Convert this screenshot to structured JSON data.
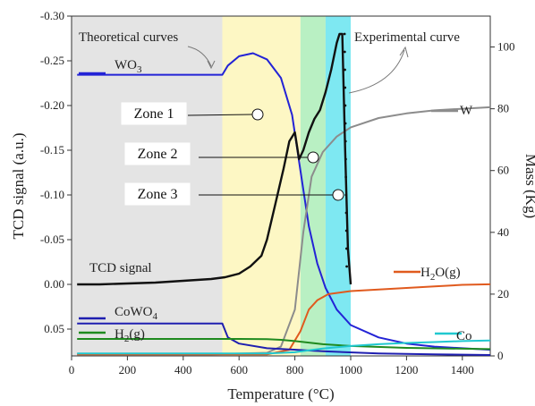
{
  "chart_data": {
    "type": "line",
    "xlabel": "Temperature (°C)",
    "ylabel_left": "TCD signal (a.u.)",
    "ylabel_right": "Mass (Kg)",
    "xlim": [
      0,
      1500
    ],
    "ylim_left": [
      0.08,
      -0.3
    ],
    "ylim_right": [
      0,
      110
    ],
    "x_ticks": [
      0,
      200,
      400,
      600,
      800,
      1000,
      1200,
      1400
    ],
    "y_left_ticks": [
      -0.3,
      -0.25,
      -0.2,
      -0.15,
      -0.1,
      -0.05,
      0.0,
      0.05
    ],
    "y_left_tick_labels": [
      "-0.30",
      "-0.25",
      "-0.20",
      "-0.15",
      "-0.10",
      "-0.05",
      "0.00",
      "0.05"
    ],
    "y_right_ticks": [
      0,
      20,
      40,
      60,
      80,
      100
    ],
    "zones": [
      {
        "name": "Zone 1",
        "x_range": [
          540,
          820
        ],
        "color": "#fdf7c4"
      },
      {
        "name": "Zone 2",
        "x_range": [
          820,
          910
        ],
        "color": "#b9f0c3"
      },
      {
        "name": "Zone 3",
        "x_range": [
          910,
          1000
        ],
        "color": "#7ee8f2"
      }
    ],
    "background_region": {
      "x_range": [
        0,
        540
      ],
      "color": "#e4e4e4"
    },
    "series": [
      {
        "name": "WO3",
        "axis": "right",
        "color": "#2323d6",
        "x": [
          20,
          540,
          560,
          600,
          650,
          700,
          750,
          790,
          820,
          850,
          880,
          910,
          950,
          1000,
          1100,
          1200,
          1300,
          1400,
          1500
        ],
        "y": [
          91,
          91,
          94,
          97,
          98,
          96,
          90,
          78,
          60,
          42,
          30,
          22,
          15,
          10,
          6,
          4,
          3,
          2.5,
          2
        ]
      },
      {
        "name": "W",
        "axis": "right",
        "color": "#8c8c8c",
        "x": [
          20,
          500,
          700,
          750,
          800,
          830,
          860,
          900,
          950,
          1000,
          1100,
          1200,
          1300,
          1400,
          1500
        ],
        "y": [
          0.5,
          0.5,
          1,
          3,
          15,
          40,
          58,
          66,
          71,
          74,
          77,
          78.5,
          79.5,
          80,
          80.5
        ]
      },
      {
        "name": "H2O(g)",
        "axis": "right",
        "color": "#e05a1e",
        "x": [
          20,
          700,
          780,
          820,
          850,
          880,
          920,
          1000,
          1100,
          1200,
          1300,
          1400,
          1500
        ],
        "y": [
          0.5,
          0.5,
          2,
          8,
          15,
          18,
          20,
          21,
          21.5,
          22,
          22.5,
          23,
          23.2
        ]
      },
      {
        "name": "CoWO4",
        "axis": "right",
        "color": "#1f1fb0",
        "x": [
          20,
          540,
          560,
          600,
          700,
          900,
          1100,
          1300,
          1500
        ],
        "y": [
          10.5,
          10.5,
          6,
          4,
          2.5,
          1.5,
          0.8,
          0.5,
          0.3
        ]
      },
      {
        "name": "H2(g)",
        "axis": "right",
        "color": "#1f8a1f",
        "x": [
          20,
          600,
          700,
          750,
          800,
          850,
          900,
          1000,
          1200,
          1500
        ],
        "y": [
          5.5,
          5.5,
          5.4,
          5.2,
          4.8,
          4.3,
          3.8,
          3.2,
          2.6,
          2.2
        ]
      },
      {
        "name": "Co",
        "axis": "right",
        "color": "#20c8d0",
        "x": [
          20,
          700,
          800,
          850,
          900,
          1000,
          1100,
          1200,
          1300,
          1400,
          1500
        ],
        "y": [
          0.8,
          0.8,
          1.2,
          1.8,
          2.4,
          3.2,
          3.8,
          4.2,
          4.5,
          4.8,
          5
        ]
      },
      {
        "name": "TCD signal",
        "axis": "left",
        "color": "#111111",
        "x": [
          20,
          100,
          200,
          300,
          400,
          500,
          550,
          600,
          640,
          680,
          700,
          730,
          760,
          780,
          800,
          815,
          830,
          850,
          870,
          890,
          910,
          930,
          950,
          960,
          970,
          980,
          990,
          1000
        ],
        "y": [
          0.0,
          0.0,
          -0.001,
          -0.002,
          -0.004,
          -0.006,
          -0.008,
          -0.012,
          -0.02,
          -0.032,
          -0.05,
          -0.09,
          -0.13,
          -0.16,
          -0.17,
          -0.14,
          -0.15,
          -0.17,
          -0.185,
          -0.195,
          -0.215,
          -0.24,
          -0.27,
          -0.28,
          -0.28,
          -0.15,
          -0.04,
          0.0
        ]
      }
    ],
    "series_labels": [
      {
        "text": "WO",
        "sub": "3",
        "series": "WO3"
      },
      {
        "text": "W",
        "sub": "",
        "series": "W"
      },
      {
        "text": "H",
        "sub": "2",
        "tail": "O(g)",
        "series": "H2O(g)"
      },
      {
        "text": "CoWO",
        "sub": "4",
        "series": "CoWO4"
      },
      {
        "text": "H",
        "sub": "2",
        "tail": "(g)",
        "series": "H2(g)"
      },
      {
        "text": "Co",
        "sub": "",
        "series": "Co"
      },
      {
        "text": "TCD signal",
        "sub": "",
        "series": "TCD signal"
      }
    ],
    "annotations": {
      "theoretical": "Theoretical curves",
      "experimental": "Experimental curve"
    }
  }
}
